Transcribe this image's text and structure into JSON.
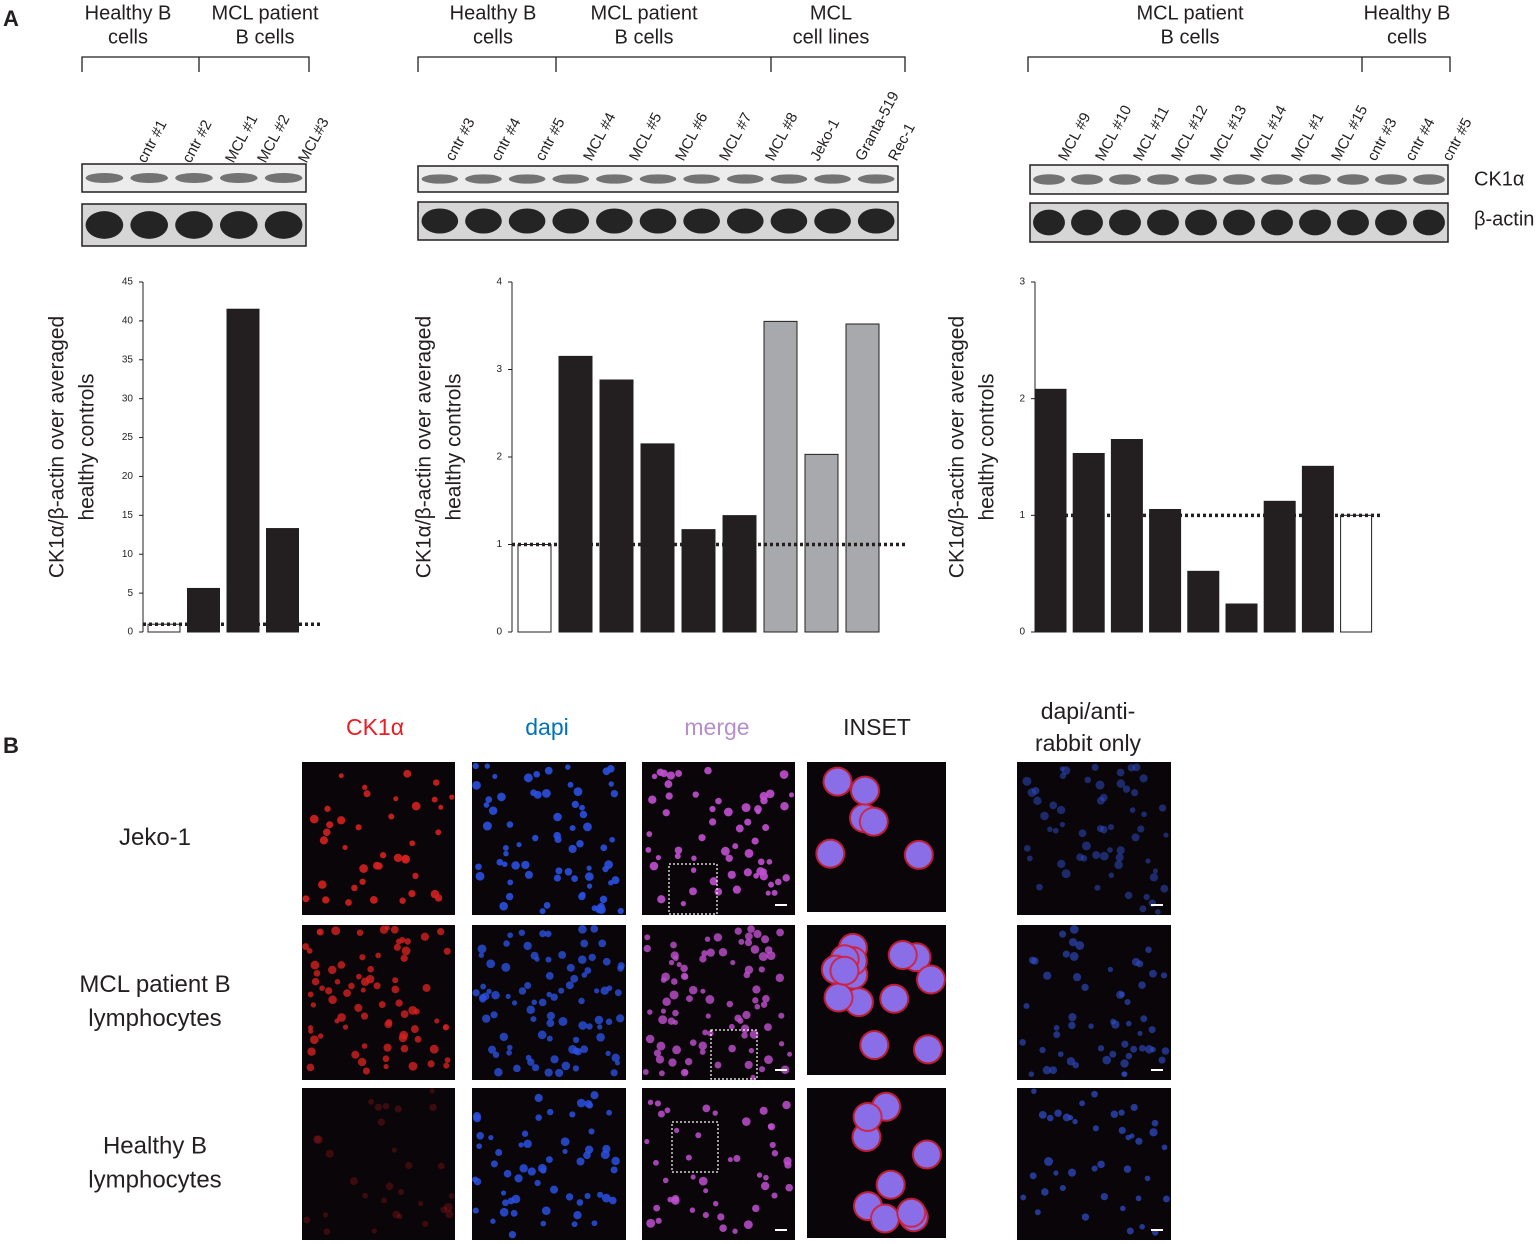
{
  "panel_labels": [
    "A",
    "B"
  ],
  "blot_rows": [
    "CK1α",
    "β-actin"
  ],
  "blots": [
    {
      "groups": [
        [
          "Healthy B",
          "cells"
        ],
        [
          "MCL patient",
          "B cells"
        ]
      ],
      "lanes": [
        "cntr #1",
        "cntr #2",
        "MCL #1",
        "MCL #2",
        "MCL#3"
      ]
    },
    {
      "groups": [
        [
          "Healthy B",
          "cells"
        ],
        [
          "MCL patient",
          "B cells"
        ],
        [
          "MCL",
          "cell lines"
        ]
      ],
      "lanes": [
        "cntr #3",
        "cntr #4",
        "cntr #5",
        "MCL #4",
        "MCL #5",
        "MCL #6",
        "MCL #7",
        "MCL #8",
        "Jeko-1",
        "Granta-519",
        "Rec-1"
      ]
    },
    {
      "groups": [
        [
          "MCL patient",
          "B cells"
        ],
        [
          "Healthy B",
          "cells"
        ]
      ],
      "lanes": [
        "MCL #9",
        "MCL #10",
        "MCL #11",
        "MCL #12",
        "MCL #13",
        "MCL #14",
        "MCL #1",
        "MCL #15",
        "cntr #3",
        "cntr #4",
        "cntr #5"
      ]
    }
  ],
  "chart_data": [
    {
      "type": "bar",
      "ylabel": [
        "CK1α/β-actin over averaged",
        "healthy controls"
      ],
      "categories": [
        null,
        null,
        null,
        null
      ],
      "values": [
        1,
        5.6,
        41.5,
        13.3
      ],
      "colors": [
        "#ffffff",
        "#231f20",
        "#231f20",
        "#231f20"
      ],
      "ylim": [
        0,
        45
      ],
      "yticks": [
        0,
        5,
        10,
        15,
        20,
        25,
        30,
        35,
        40,
        45
      ],
      "reference_line": 1
    },
    {
      "type": "bar",
      "ylabel": [
        "CK1α/β-actin over averaged",
        "healthy controls"
      ],
      "categories": [
        null,
        null,
        null,
        null,
        null,
        null,
        null,
        null,
        null
      ],
      "values": [
        1,
        3.15,
        2.88,
        2.15,
        1.17,
        1.33,
        3.55,
        2.03,
        3.52
      ],
      "colors": [
        "#ffffff",
        "#231f20",
        "#231f20",
        "#231f20",
        "#231f20",
        "#231f20",
        "#a7a9ac",
        "#a7a9ac",
        "#a7a9ac"
      ],
      "ylim": [
        0,
        4
      ],
      "yticks": [
        0,
        1,
        2,
        3,
        4
      ],
      "reference_line": 1
    },
    {
      "type": "bar",
      "ylabel": [
        "CK1α/β-actin over averaged",
        "healthy controls"
      ],
      "categories": [
        null,
        null,
        null,
        null,
        null,
        null,
        null,
        null,
        null
      ],
      "values": [
        2.08,
        1.53,
        1.65,
        1.05,
        0.52,
        0.24,
        1.12,
        1.42,
        1
      ],
      "colors": [
        "#231f20",
        "#231f20",
        "#231f20",
        "#231f20",
        "#231f20",
        "#231f20",
        "#231f20",
        "#231f20",
        "#ffffff"
      ],
      "ylim": [
        0,
        3
      ],
      "yticks": [
        0,
        1,
        2,
        3
      ],
      "reference_line": 1
    }
  ],
  "microscopy": {
    "columns": [
      [
        "CK1α"
      ],
      [
        "dapi"
      ],
      [
        "merge"
      ],
      [
        "INSET"
      ],
      [
        "dapi/anti-",
        "rabbit only"
      ]
    ],
    "column_colors": [
      "#ed1c24",
      "#0072bc",
      "#b48fcc",
      "#231f20",
      "#231f20"
    ],
    "rows": [
      [
        "Jeko-1"
      ],
      [
        "MCL patient B",
        "lymphocytes"
      ],
      [
        "Healthy B",
        "lymphocytes"
      ]
    ]
  }
}
